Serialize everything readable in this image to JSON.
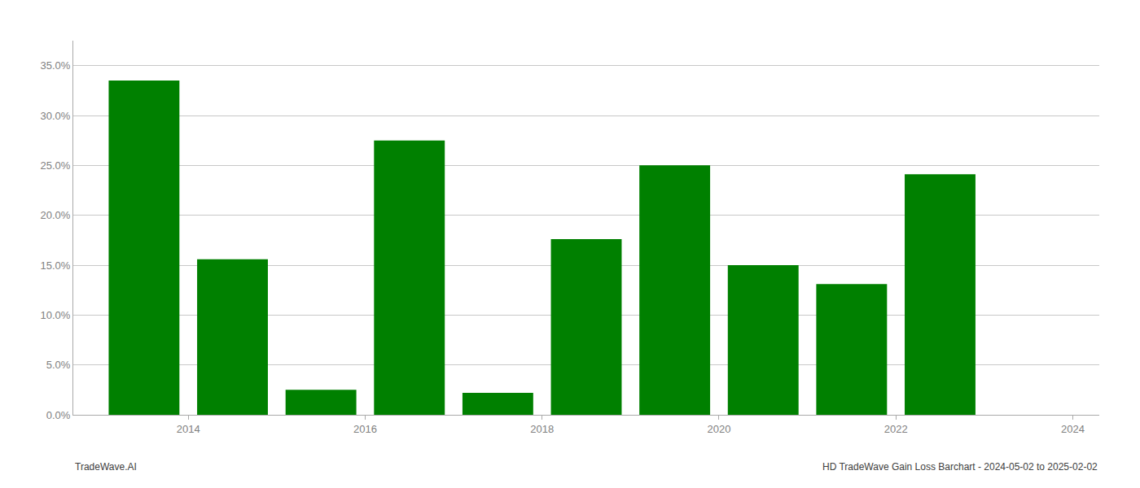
{
  "chart_data": {
    "type": "bar",
    "x": [
      2014,
      2015,
      2016,
      2017,
      2018,
      2019,
      2020,
      2021,
      2022,
      2023
    ],
    "values": [
      0.335,
      0.156,
      0.025,
      0.275,
      0.022,
      0.176,
      0.25,
      0.15,
      0.131,
      0.241
    ],
    "color": "#008000",
    "xlim": [
      2013.2,
      2024.8
    ],
    "xticks": [
      {
        "value": 2014.5,
        "label": "2014"
      },
      {
        "value": 2016.5,
        "label": "2016"
      },
      {
        "value": 2018.5,
        "label": "2018"
      },
      {
        "value": 2020.5,
        "label": "2020"
      },
      {
        "value": 2022.5,
        "label": "2022"
      },
      {
        "value": 2024.5,
        "label": "2024"
      }
    ],
    "ylim": [
      0,
      0.375
    ],
    "yticks": [
      {
        "value": 0.0,
        "label": "0.0%"
      },
      {
        "value": 0.05,
        "label": "5.0%"
      },
      {
        "value": 0.1,
        "label": "10.0%"
      },
      {
        "value": 0.15,
        "label": "15.0%"
      },
      {
        "value": 0.2,
        "label": "20.0%"
      },
      {
        "value": 0.25,
        "label": "25.0%"
      },
      {
        "value": 0.3,
        "label": "30.0%"
      },
      {
        "value": 0.35,
        "label": "35.0%"
      }
    ],
    "grid": true,
    "annotations": [
      "TradeWave.AI",
      "HD TradeWave Gain Loss Barchart - 2024-05-02 to 2025-02-02"
    ]
  }
}
